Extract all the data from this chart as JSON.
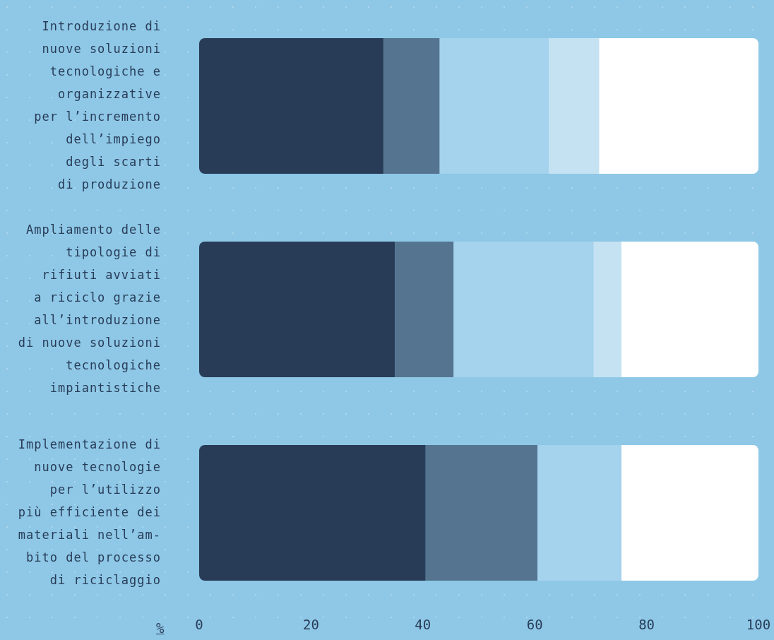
{
  "chart_data": {
    "type": "bar",
    "orientation": "horizontal",
    "stacked": true,
    "xlabel": "%",
    "categories": [
      "Introduzione di\nnuove soluzioni\ntecnologiche e\norganizzative\nper l’incremento\ndell’impiego\ndegli scarti\ndi produzione",
      "Ampliamento delle\ntipologie di\nrifiuti avviati\na riciclo grazie\nall’introduzione\ndi nuove soluzioni\ntecnologiche\nimpiantistiche",
      "Implementazione di\nnuove tecnologie\nper l’utilizzo\npiù efficiente dei\nmateriali nell’am-\nbito del processo\ndi riciclaggio"
    ],
    "series": [
      {
        "color": "#283c58",
        "values": [
          33,
          35,
          40.5
        ]
      },
      {
        "color": "#557490",
        "values": [
          10,
          10.5,
          20
        ]
      },
      {
        "color": "#a5d2ec",
        "values": [
          19.5,
          25,
          15
        ]
      },
      {
        "color": "#c5e2f3",
        "values": [
          9,
          5,
          0
        ]
      },
      {
        "color": "#ffffff",
        "values": [
          28.5,
          24.5,
          24.5
        ]
      }
    ],
    "xlim": [
      0,
      100
    ],
    "xticks": [
      0,
      20,
      40,
      60,
      80,
      100
    ]
  }
}
